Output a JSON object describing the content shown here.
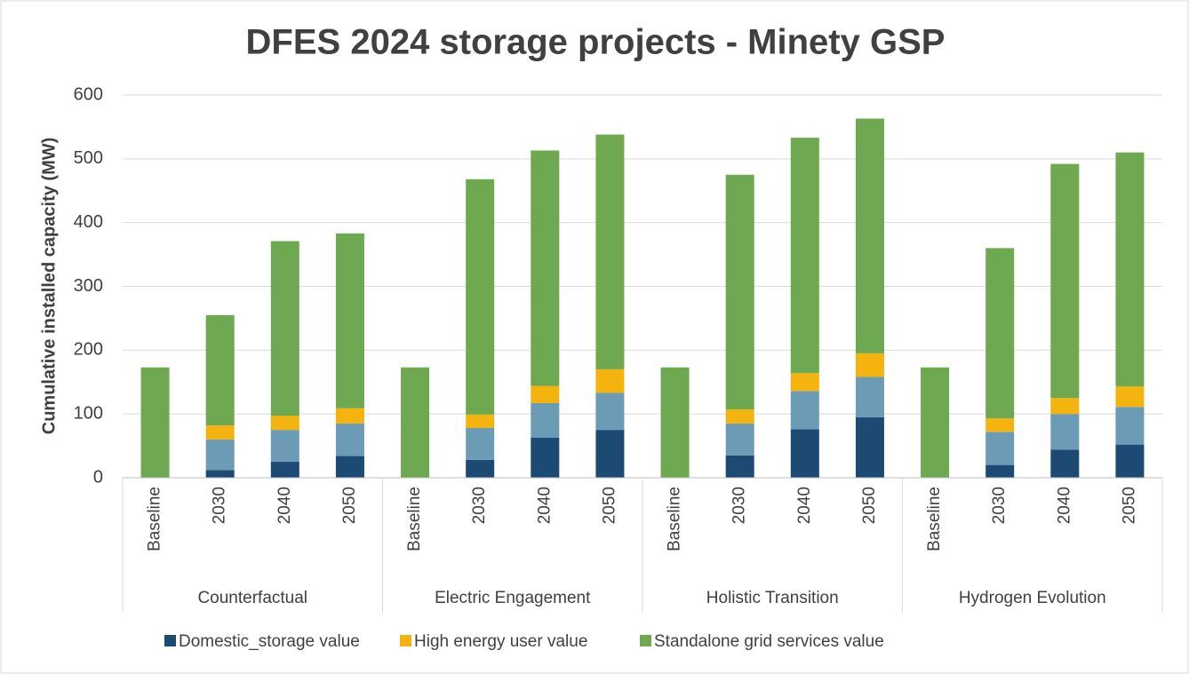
{
  "chart_data": {
    "type": "stacked_bar",
    "title": "DFES 2024 storage projects - Minety GSP",
    "y_label": "Cumulative installed capacity (MW)",
    "groups": [
      "Counterfactual",
      "Electric Engagement",
      "Holistic Transition",
      "Hydrogen Evolution"
    ],
    "categories": [
      "Baseline",
      "2030",
      "2040",
      "2050",
      "Baseline",
      "2030",
      "2040",
      "2050",
      "Baseline",
      "2030",
      "2040",
      "2050",
      "Baseline",
      "2030",
      "2040",
      "2050"
    ],
    "series": [
      {
        "name": "Domestic_storage value",
        "color": "#1c4a72",
        "values": [
          0,
          12,
          25,
          34,
          0,
          28,
          63,
          75,
          0,
          35,
          76,
          95,
          0,
          20,
          44,
          52
        ]
      },
      {
        "color": "#6b9bb5",
        "values": [
          0,
          48,
          50,
          51,
          0,
          50,
          54,
          58,
          0,
          50,
          60,
          63,
          0,
          52,
          56,
          59
        ]
      },
      {
        "name": "High energy user value",
        "color": "#f5b30f",
        "values": [
          0,
          22,
          22,
          24,
          0,
          21,
          27,
          37,
          0,
          22,
          28,
          37,
          0,
          21,
          25,
          32
        ]
      },
      {
        "name": "Standalone grid services value",
        "color": "#6ea850",
        "values": [
          173,
          173,
          274,
          274,
          173,
          369,
          369,
          368,
          173,
          368,
          369,
          368,
          173,
          267,
          367,
          367
        ]
      }
    ],
    "ylim": [
      0,
      600
    ],
    "yticks": [
      0,
      100,
      200,
      300,
      400,
      500,
      600
    ],
    "grid": true
  }
}
